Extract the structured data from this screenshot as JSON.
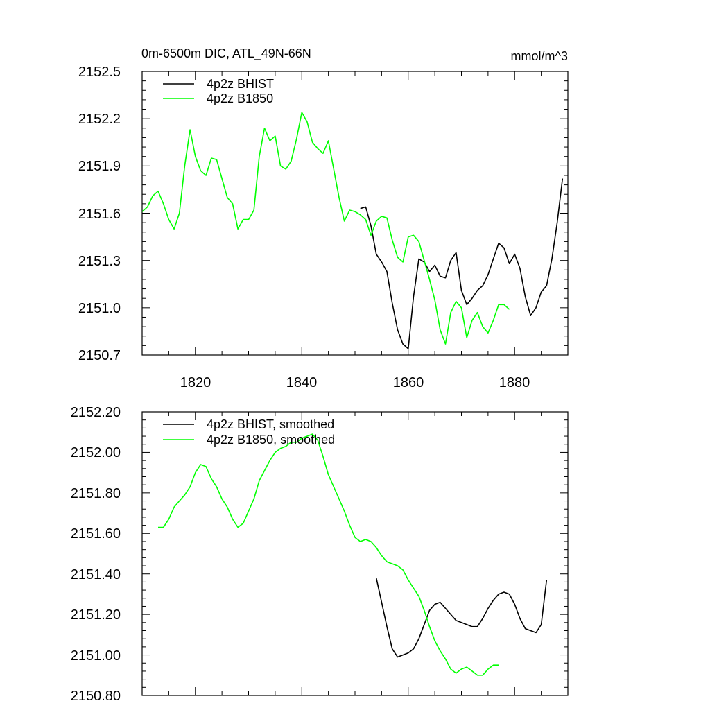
{
  "chart_data": [
    {
      "type": "line",
      "title": "0m-6500m DIC, ATL_49N-66N",
      "units": "mmol/m^3",
      "xlim": [
        1810,
        1890
      ],
      "ylim": [
        2150.7,
        2152.5
      ],
      "x_ticks": [
        1820,
        1840,
        1860,
        1880
      ],
      "x_tick_labels": [
        "1820",
        "1840",
        "1860",
        "1880"
      ],
      "y_ticks": [
        2150.7,
        2151.0,
        2151.3,
        2151.6,
        2151.9,
        2152.2,
        2152.5
      ],
      "y_tick_labels": [
        "2150.7",
        "2151.0",
        "2151.3",
        "2151.6",
        "2151.9",
        "2152.2",
        "2152.5"
      ],
      "legend_position": "top-left",
      "series": [
        {
          "name": "4p2z BHIST",
          "color": "#000000",
          "x": [
            1851,
            1852,
            1853,
            1854,
            1855,
            1856,
            1857,
            1858,
            1859,
            1860,
            1861,
            1862,
            1863,
            1864,
            1865,
            1866,
            1867,
            1868,
            1869,
            1870,
            1871,
            1872,
            1873,
            1874,
            1875,
            1876,
            1877,
            1878,
            1879,
            1880,
            1881,
            1882,
            1883,
            1884,
            1885,
            1886,
            1887,
            1888,
            1889
          ],
          "values": [
            2151.63,
            2151.64,
            2151.52,
            2151.34,
            2151.29,
            2151.23,
            2151.03,
            2150.86,
            2150.77,
            2150.74,
            2151.07,
            2151.31,
            2151.29,
            2151.23,
            2151.27,
            2151.2,
            2151.19,
            2151.3,
            2151.35,
            2151.11,
            2151.02,
            2151.06,
            2151.11,
            2151.14,
            2151.21,
            2151.31,
            2151.41,
            2151.38,
            2151.28,
            2151.34,
            2151.25,
            2151.07,
            2150.95,
            2151.0,
            2151.1,
            2151.14,
            2151.31,
            2151.54,
            2151.82
          ]
        },
        {
          "name": "4p2z B1850",
          "color": "#00ff00",
          "x": [
            1810,
            1811,
            1812,
            1813,
            1814,
            1815,
            1816,
            1817,
            1818,
            1819,
            1820,
            1821,
            1822,
            1823,
            1824,
            1825,
            1826,
            1827,
            1828,
            1829,
            1830,
            1831,
            1832,
            1833,
            1834,
            1835,
            1836,
            1837,
            1838,
            1839,
            1840,
            1841,
            1842,
            1843,
            1844,
            1845,
            1846,
            1847,
            1848,
            1849,
            1850,
            1851,
            1852,
            1853,
            1854,
            1855,
            1856,
            1857,
            1858,
            1859,
            1860,
            1861,
            1862,
            1863,
            1864,
            1865,
            1866,
            1867,
            1868,
            1869,
            1870,
            1871,
            1872,
            1873,
            1874,
            1875,
            1876,
            1877,
            1878,
            1879
          ],
          "values": [
            2151.61,
            2151.64,
            2151.71,
            2151.74,
            2151.66,
            2151.56,
            2151.5,
            2151.6,
            2151.9,
            2152.13,
            2151.96,
            2151.87,
            2151.84,
            2151.95,
            2151.94,
            2151.82,
            2151.7,
            2151.66,
            2151.5,
            2151.56,
            2151.56,
            2151.62,
            2151.96,
            2152.14,
            2152.06,
            2152.09,
            2151.9,
            2151.88,
            2151.93,
            2152.07,
            2152.24,
            2152.18,
            2152.05,
            2152.01,
            2151.98,
            2152.06,
            2151.88,
            2151.7,
            2151.55,
            2151.62,
            2151.61,
            2151.59,
            2151.56,
            2151.46,
            2151.55,
            2151.58,
            2151.57,
            2151.43,
            2151.32,
            2151.29,
            2151.45,
            2151.46,
            2151.42,
            2151.3,
            2151.18,
            2151.05,
            2150.86,
            2150.77,
            2150.97,
            2151.04,
            2151.0,
            2150.81,
            2150.92,
            2150.97,
            2150.88,
            2150.84,
            2150.92,
            2151.02,
            2151.02,
            2150.99
          ]
        }
      ]
    },
    {
      "type": "line",
      "title": "",
      "xlim": [
        1810,
        1890
      ],
      "ylim": [
        2150.8,
        2152.2
      ],
      "x_ticks": [
        1820,
        1840,
        1860,
        1880
      ],
      "x_tick_labels": [],
      "y_ticks": [
        2150.8,
        2151.0,
        2151.2,
        2151.4,
        2151.6,
        2151.8,
        2152.0,
        2152.2
      ],
      "y_tick_labels": [
        "2150.80",
        "2151.00",
        "2151.20",
        "2151.40",
        "2151.60",
        "2151.80",
        "2152.00",
        "2152.20"
      ],
      "legend_position": "top-left",
      "series": [
        {
          "name": "4p2z BHIST, smoothed",
          "color": "#000000",
          "x": [
            1854,
            1855,
            1856,
            1857,
            1858,
            1859,
            1860,
            1861,
            1862,
            1863,
            1864,
            1865,
            1866,
            1867,
            1868,
            1869,
            1870,
            1871,
            1872,
            1873,
            1874,
            1875,
            1876,
            1877,
            1878,
            1879,
            1880,
            1881,
            1882,
            1883,
            1884,
            1885,
            1886
          ],
          "values": [
            2151.38,
            2151.26,
            2151.14,
            2151.03,
            2150.99,
            2151.0,
            2151.01,
            2151.03,
            2151.08,
            2151.15,
            2151.22,
            2151.25,
            2151.26,
            2151.23,
            2151.2,
            2151.17,
            2151.16,
            2151.15,
            2151.14,
            2151.14,
            2151.18,
            2151.23,
            2151.27,
            2151.3,
            2151.31,
            2151.3,
            2151.25,
            2151.18,
            2151.13,
            2151.12,
            2151.11,
            2151.15,
            2151.37
          ]
        },
        {
          "name": "4p2z B1850, smoothed",
          "color": "#00ff00",
          "x": [
            1813,
            1814,
            1815,
            1816,
            1817,
            1818,
            1819,
            1820,
            1821,
            1822,
            1823,
            1824,
            1825,
            1826,
            1827,
            1828,
            1829,
            1830,
            1831,
            1832,
            1833,
            1834,
            1835,
            1836,
            1837,
            1838,
            1839,
            1840,
            1841,
            1842,
            1843,
            1844,
            1845,
            1846,
            1847,
            1848,
            1849,
            1850,
            1851,
            1852,
            1853,
            1854,
            1855,
            1856,
            1857,
            1858,
            1859,
            1860,
            1861,
            1862,
            1863,
            1864,
            1865,
            1866,
            1867,
            1868,
            1869,
            1870,
            1871,
            1872,
            1873,
            1874,
            1875,
            1876,
            1877
          ],
          "values": [
            2151.63,
            2151.63,
            2151.67,
            2151.73,
            2151.76,
            2151.79,
            2151.83,
            2151.9,
            2151.94,
            2151.93,
            2151.87,
            2151.83,
            2151.77,
            2151.73,
            2151.67,
            2151.63,
            2151.65,
            2151.71,
            2151.77,
            2151.86,
            2151.91,
            2151.96,
            2152.0,
            2152.02,
            2152.03,
            2152.05,
            2152.05,
            2152.07,
            2152.08,
            2152.09,
            2152.06,
            2151.98,
            2151.89,
            2151.83,
            2151.77,
            2151.71,
            2151.64,
            2151.58,
            2151.56,
            2151.57,
            2151.56,
            2151.53,
            2151.49,
            2151.46,
            2151.45,
            2151.44,
            2151.42,
            2151.37,
            2151.33,
            2151.29,
            2151.22,
            2151.14,
            2151.07,
            2151.02,
            2150.98,
            2150.93,
            2150.91,
            2150.93,
            2150.94,
            2150.92,
            2150.9,
            2150.9,
            2150.93,
            2150.95,
            2150.95
          ]
        }
      ]
    }
  ]
}
